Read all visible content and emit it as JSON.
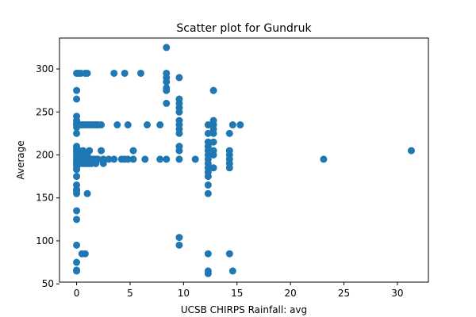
{
  "chart_data": {
    "type": "scatter",
    "title": "Scatter plot for Gundruk",
    "xlabel": "UCSB CHIRPS Rainfall: avg",
    "ylabel": "Average",
    "xlim": [
      -1.6,
      32.9
    ],
    "ylim": [
      52,
      336
    ],
    "xticks": [
      0,
      5,
      10,
      15,
      20,
      25,
      30
    ],
    "yticks": [
      50,
      100,
      150,
      200,
      250,
      300
    ],
    "grid": false,
    "legend": "none",
    "marker_color": "#1f77b4",
    "points": [
      [
        0,
        65
      ],
      [
        0,
        66
      ],
      [
        0,
        75
      ],
      [
        0,
        95
      ],
      [
        0,
        125
      ],
      [
        0,
        135
      ],
      [
        0,
        155
      ],
      [
        0,
        158
      ],
      [
        0,
        160
      ],
      [
        0,
        165
      ],
      [
        0,
        175
      ],
      [
        0,
        183
      ],
      [
        0,
        185
      ],
      [
        0,
        188
      ],
      [
        0,
        190
      ],
      [
        0,
        192
      ],
      [
        0,
        195
      ],
      [
        0,
        197
      ],
      [
        0,
        200
      ],
      [
        0,
        203
      ],
      [
        0,
        205
      ],
      [
        0,
        208
      ],
      [
        0,
        210
      ],
      [
        0,
        225
      ],
      [
        0,
        232
      ],
      [
        0,
        235
      ],
      [
        0,
        237
      ],
      [
        0,
        240
      ],
      [
        0,
        245
      ],
      [
        0,
        265
      ],
      [
        0,
        275
      ],
      [
        0,
        295
      ],
      [
        0.2,
        195
      ],
      [
        0.2,
        205
      ],
      [
        0.2,
        235
      ],
      [
        0.2,
        295
      ],
      [
        0.4,
        190
      ],
      [
        0.4,
        195
      ],
      [
        0.4,
        200
      ],
      [
        0.4,
        235
      ],
      [
        0.4,
        295
      ],
      [
        0.5,
        85
      ],
      [
        0.6,
        190
      ],
      [
        0.6,
        195
      ],
      [
        0.6,
        205
      ],
      [
        0.6,
        235
      ],
      [
        0.8,
        85
      ],
      [
        0.8,
        190
      ],
      [
        0.8,
        195
      ],
      [
        0.8,
        235
      ],
      [
        0.8,
        295
      ],
      [
        1.0,
        155
      ],
      [
        1.0,
        190
      ],
      [
        1.0,
        195
      ],
      [
        1.0,
        200
      ],
      [
        1.0,
        235
      ],
      [
        1.0,
        295
      ],
      [
        1.2,
        190
      ],
      [
        1.2,
        195
      ],
      [
        1.2,
        205
      ],
      [
        1.2,
        235
      ],
      [
        1.4,
        190
      ],
      [
        1.4,
        195
      ],
      [
        1.4,
        235
      ],
      [
        1.6,
        195
      ],
      [
        1.6,
        235
      ],
      [
        1.8,
        190
      ],
      [
        1.8,
        195
      ],
      [
        1.8,
        235
      ],
      [
        2.0,
        195
      ],
      [
        2.0,
        235
      ],
      [
        2.3,
        205
      ],
      [
        2.3,
        235
      ],
      [
        2.5,
        190
      ],
      [
        2.5,
        195
      ],
      [
        3.0,
        195
      ],
      [
        3.5,
        195
      ],
      [
        3.5,
        295
      ],
      [
        3.8,
        235
      ],
      [
        4.2,
        195
      ],
      [
        4.5,
        195
      ],
      [
        4.5,
        295
      ],
      [
        4.8,
        195
      ],
      [
        4.8,
        235
      ],
      [
        5.3,
        195
      ],
      [
        5.3,
        205
      ],
      [
        6.0,
        295
      ],
      [
        6.4,
        195
      ],
      [
        6.6,
        235
      ],
      [
        7.8,
        195
      ],
      [
        7.8,
        235
      ],
      [
        8.4,
        195
      ],
      [
        8.4,
        260
      ],
      [
        8.4,
        275
      ],
      [
        8.4,
        278
      ],
      [
        8.4,
        285
      ],
      [
        8.4,
        290
      ],
      [
        8.4,
        295
      ],
      [
        8.4,
        325
      ],
      [
        9.6,
        95
      ],
      [
        9.6,
        104
      ],
      [
        9.6,
        195
      ],
      [
        9.6,
        205
      ],
      [
        9.6,
        210
      ],
      [
        9.6,
        225
      ],
      [
        9.6,
        230
      ],
      [
        9.6,
        235
      ],
      [
        9.6,
        240
      ],
      [
        9.6,
        250
      ],
      [
        9.6,
        255
      ],
      [
        9.6,
        260
      ],
      [
        9.6,
        265
      ],
      [
        9.6,
        290
      ],
      [
        11.1,
        195
      ],
      [
        12.3,
        62
      ],
      [
        12.3,
        65
      ],
      [
        12.3,
        85
      ],
      [
        12.3,
        155
      ],
      [
        12.3,
        165
      ],
      [
        12.3,
        175
      ],
      [
        12.3,
        180
      ],
      [
        12.3,
        185
      ],
      [
        12.3,
        190
      ],
      [
        12.3,
        195
      ],
      [
        12.3,
        200
      ],
      [
        12.3,
        205
      ],
      [
        12.3,
        210
      ],
      [
        12.3,
        215
      ],
      [
        12.3,
        225
      ],
      [
        12.3,
        235
      ],
      [
        12.8,
        185
      ],
      [
        12.8,
        200
      ],
      [
        12.8,
        205
      ],
      [
        12.8,
        215
      ],
      [
        12.8,
        225
      ],
      [
        12.8,
        230
      ],
      [
        12.8,
        235
      ],
      [
        12.8,
        240
      ],
      [
        12.8,
        275
      ],
      [
        14.3,
        85
      ],
      [
        14.3,
        185
      ],
      [
        14.3,
        190
      ],
      [
        14.3,
        195
      ],
      [
        14.3,
        200
      ],
      [
        14.3,
        205
      ],
      [
        14.3,
        225
      ],
      [
        14.6,
        65
      ],
      [
        14.6,
        235
      ],
      [
        15.3,
        235
      ],
      [
        23.1,
        195
      ],
      [
        31.3,
        205
      ]
    ]
  }
}
